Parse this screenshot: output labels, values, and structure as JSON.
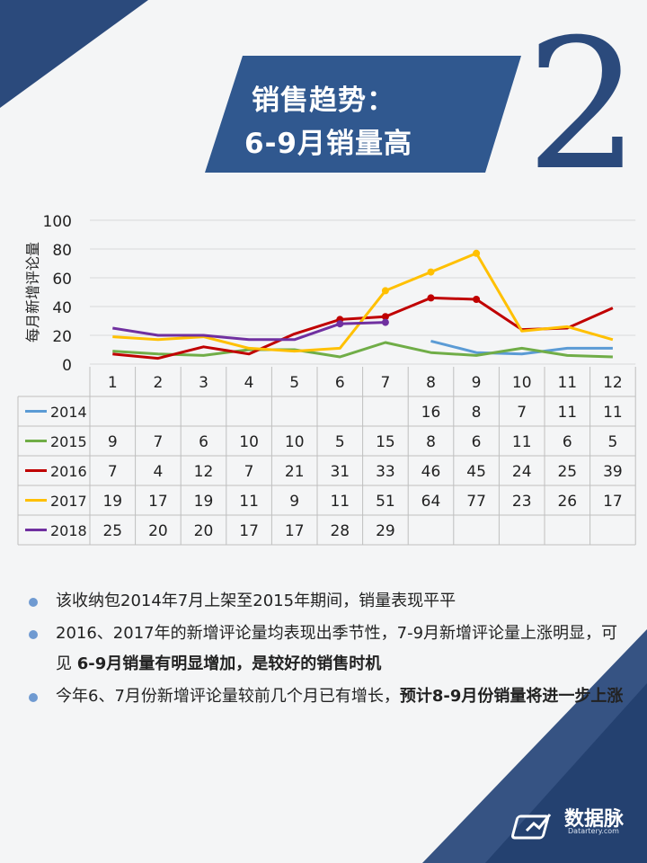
{
  "title": {
    "line1": "销售趋势：",
    "line2": "6-9月销量高"
  },
  "big_number": "2",
  "chart_data": {
    "type": "line",
    "ylabel": "每月新增评论量",
    "ylim": [
      0,
      100
    ],
    "yticks": [
      0,
      20,
      40,
      60,
      80,
      100
    ],
    "categories": [
      "1",
      "2",
      "3",
      "4",
      "5",
      "6",
      "7",
      "8",
      "9",
      "10",
      "11",
      "12"
    ],
    "legend": "table-left",
    "grid": "horizontal",
    "series": [
      {
        "name": "2014",
        "color": "#5b9bd5",
        "values": [
          null,
          null,
          null,
          null,
          null,
          null,
          null,
          16,
          8,
          7,
          11,
          11
        ]
      },
      {
        "name": "2015",
        "color": "#70ad47",
        "values": [
          9,
          7,
          6,
          10,
          10,
          5,
          15,
          8,
          6,
          11,
          6,
          5
        ]
      },
      {
        "name": "2016",
        "color": "#c00000",
        "values": [
          7,
          4,
          12,
          7,
          21,
          31,
          33,
          46,
          45,
          24,
          25,
          39
        ]
      },
      {
        "name": "2017",
        "color": "#ffc000",
        "values": [
          19,
          17,
          19,
          11,
          9,
          11,
          51,
          64,
          77,
          23,
          26,
          17
        ]
      },
      {
        "name": "2018",
        "color": "#7030a0",
        "values": [
          25,
          20,
          20,
          17,
          17,
          28,
          29,
          null,
          null,
          null,
          null,
          null
        ]
      }
    ]
  },
  "bullets": [
    {
      "parts": [
        {
          "text": "该收纳包2014年7月上架至2015年期间，销量表现平平",
          "bold": false
        }
      ]
    },
    {
      "parts": [
        {
          "text": "2016、2017年的新增评论量均表现出季节性，7-9月新增评论量上涨明显，可见 ",
          "bold": false
        },
        {
          "text": "6-9月销量有明显增加，是较好的销售时机",
          "bold": true
        }
      ]
    },
    {
      "parts": [
        {
          "text": "今年6、7月份新增评论量较前几个月已有增长，",
          "bold": false
        },
        {
          "text": "预计8-9月份销量将进一步上涨",
          "bold": true
        }
      ]
    }
  ],
  "logo": {
    "name": "数据脉",
    "sub": "Datartery.com"
  },
  "colors": {
    "navy": "#2b4a7c",
    "banner": "#30588f"
  }
}
